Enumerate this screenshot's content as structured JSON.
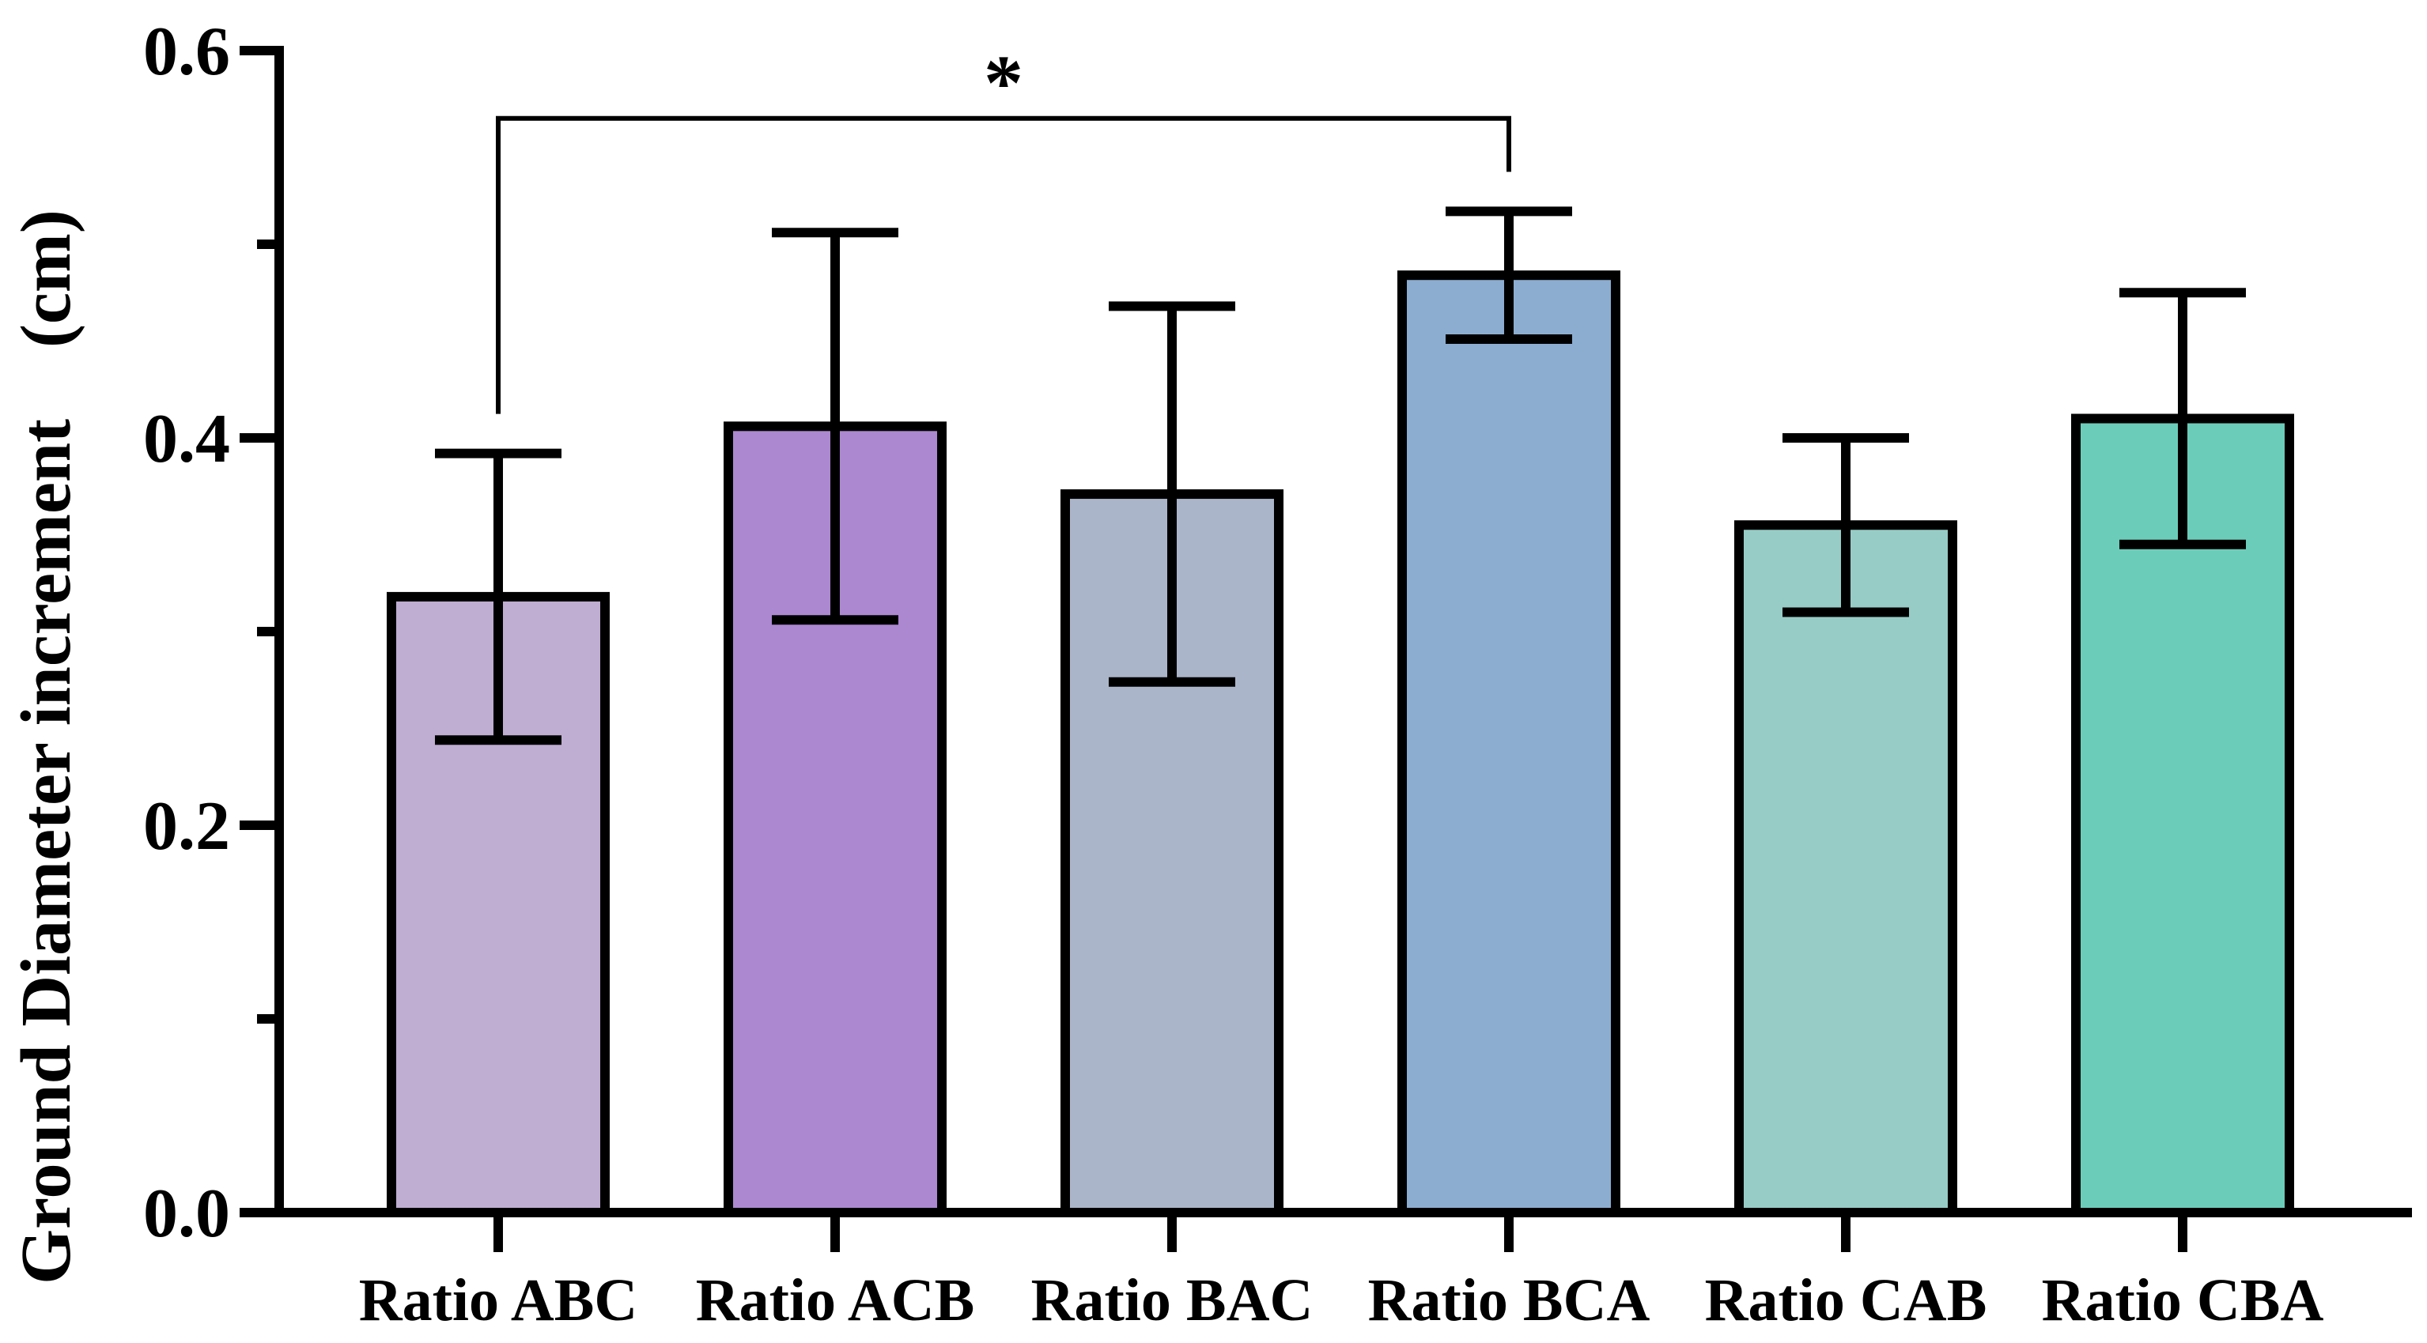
{
  "chart_data": {
    "type": "bar",
    "title": "",
    "xlabel": "",
    "ylabel": "Ground Diameter increment　(cm)",
    "ylim": [
      0,
      0.6
    ],
    "y_ticks": [
      "0.0",
      "0.2",
      "0.4",
      "0.6"
    ],
    "y_tick_values": [
      0,
      0.2,
      0.4,
      0.6
    ],
    "y_minor_tick_values": [
      0.1,
      0.3,
      0.5
    ],
    "grid": false,
    "categories": [
      "Ratio ABC",
      "Ratio ACB",
      "Ratio BAC",
      "Ratio BCA",
      "Ratio CAB",
      "Ratio CBA"
    ],
    "values": [
      0.318,
      0.406,
      0.371,
      0.484,
      0.355,
      0.41
    ],
    "errors": [
      0.074,
      0.1,
      0.097,
      0.033,
      0.045,
      0.065
    ],
    "colors": [
      "#BFADD2",
      "#AC88D1",
      "#ABB5CA",
      "#8CADD0",
      "#97CCC6",
      "#6BCDB9"
    ],
    "significance": [
      {
        "from": 0,
        "to": 3,
        "label": "*",
        "level": 0.565
      }
    ]
  }
}
